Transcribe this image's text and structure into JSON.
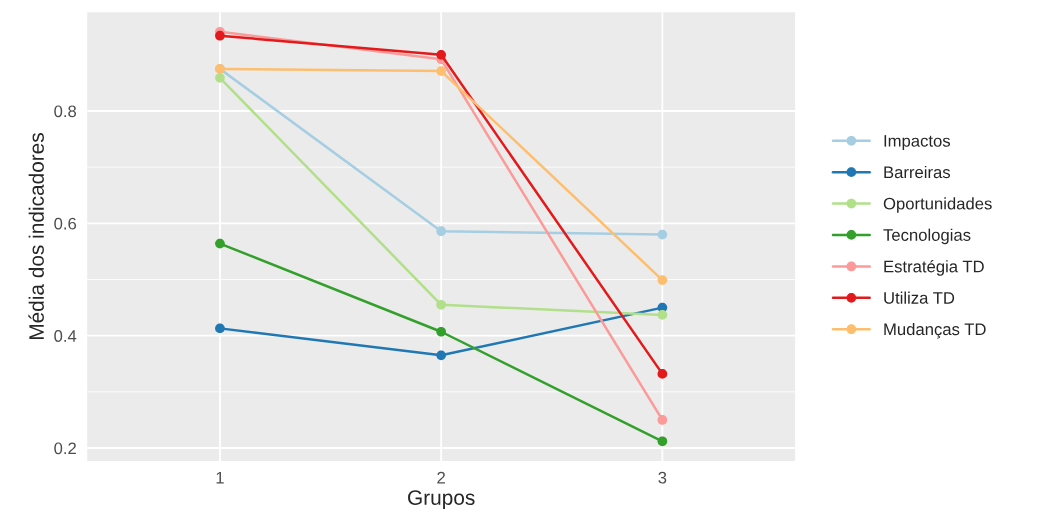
{
  "chart_data": {
    "type": "line",
    "xlabel": "Grupos",
    "ylabel": "Média dos indicadores",
    "x": [
      1,
      2,
      3
    ],
    "xlim": [
      0.4,
      3.6
    ],
    "xticks": [
      1,
      2,
      3
    ],
    "ylim": [
      0.177,
      0.976
    ],
    "yticks": [
      0.2,
      0.4,
      0.6,
      0.8
    ],
    "grid": true,
    "legend": "right",
    "marker": "circle",
    "line_style": "solid",
    "series": [
      {
        "name": "Impactos",
        "color": "#a6cee3",
        "values": [
          0.875,
          0.586,
          0.58
        ]
      },
      {
        "name": "Barreiras",
        "color": "#1f78b4",
        "values": [
          0.413,
          0.365,
          0.45
        ]
      },
      {
        "name": "Oportunidades",
        "color": "#b2df8a",
        "values": [
          0.859,
          0.455,
          0.437
        ]
      },
      {
        "name": "Tecnologias",
        "color": "#33a02c",
        "values": [
          0.564,
          0.407,
          0.212
        ]
      },
      {
        "name": "Estratégia TD",
        "color": "#fb9a99",
        "values": [
          0.941,
          0.892,
          0.25
        ]
      },
      {
        "name": "Utiliza TD",
        "color": "#e31a1c",
        "values": [
          0.934,
          0.9,
          0.332
        ]
      },
      {
        "name": "Mudanças TD",
        "color": "#fdbf6f",
        "values": [
          0.875,
          0.871,
          0.499
        ]
      }
    ]
  }
}
